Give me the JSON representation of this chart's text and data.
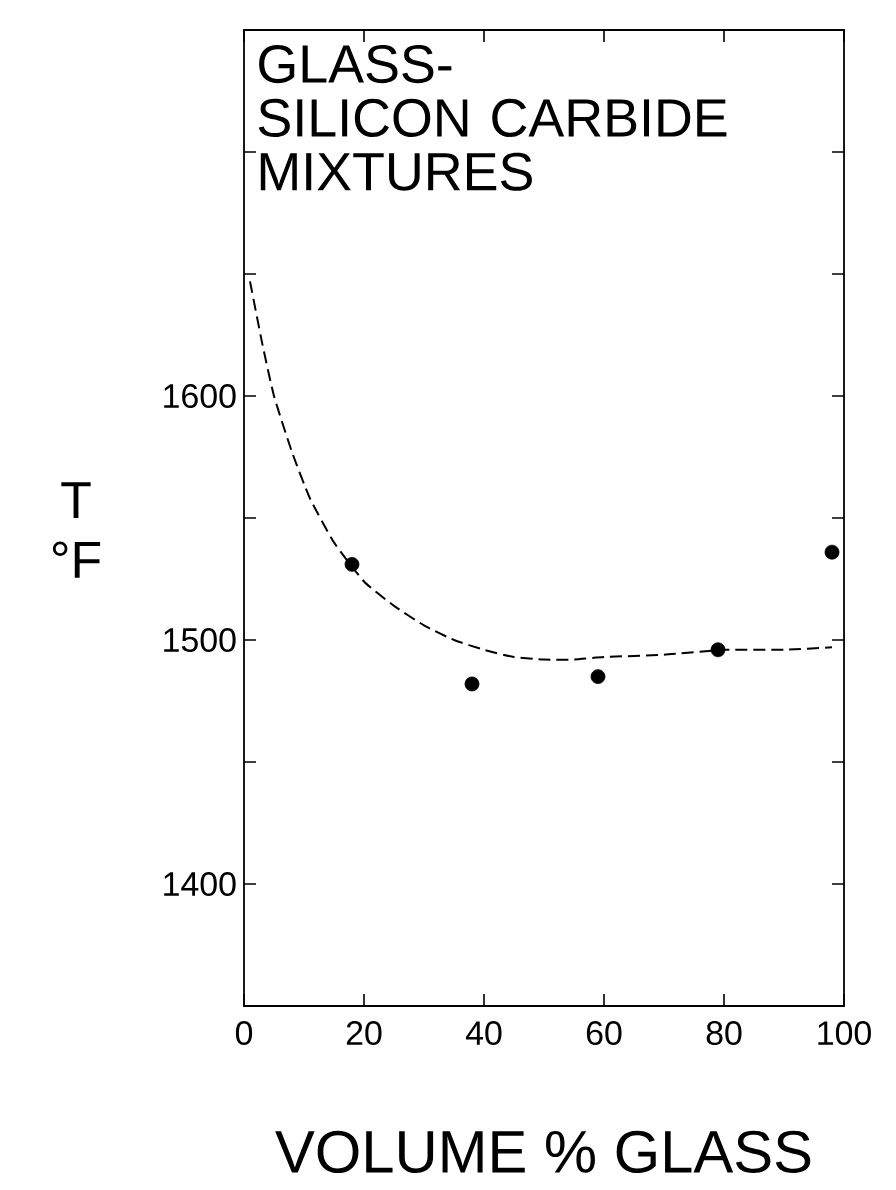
{
  "chart_data": {
    "type": "scatter",
    "title": "GLASS-\nSILICON CARBIDE\nMIXTURES",
    "xlabel": "VOLUME % GLASS",
    "ylabel": "T\n°F",
    "xlim": [
      0,
      100
    ],
    "ylim": [
      1350,
      1750
    ],
    "xticks": [
      0,
      20,
      40,
      60,
      80,
      100
    ],
    "yticks": [
      {
        "value": 1400,
        "label": "1400"
      },
      {
        "value": 1450,
        "label": null
      },
      {
        "value": 1500,
        "label": "1500"
      },
      {
        "value": 1550,
        "label": null
      },
      {
        "value": 1600,
        "label": "1600"
      },
      {
        "value": 1650,
        "label": null
      },
      {
        "value": 1700,
        "label": null
      }
    ],
    "marker": "circle",
    "grid": false,
    "series": [
      {
        "color": "#000000",
        "x": [
          18,
          38,
          59,
          79,
          98
        ],
        "values": [
          1531,
          1482,
          1485,
          1496,
          1536
        ]
      },
      {
        "type": "line",
        "line_style": "dashed",
        "marker": "none",
        "color": "#000000",
        "x": [
          1,
          3,
          5,
          8,
          11,
          15,
          20,
          25,
          30,
          35,
          40,
          45,
          50,
          55,
          60,
          70,
          80,
          90,
          98
        ],
        "values": [
          1647,
          1622,
          1600,
          1577,
          1558,
          1540,
          1524,
          1514,
          1506,
          1500,
          1496,
          1493,
          1492,
          1492,
          1493,
          1494,
          1496,
          1496,
          1497
        ]
      }
    ]
  }
}
